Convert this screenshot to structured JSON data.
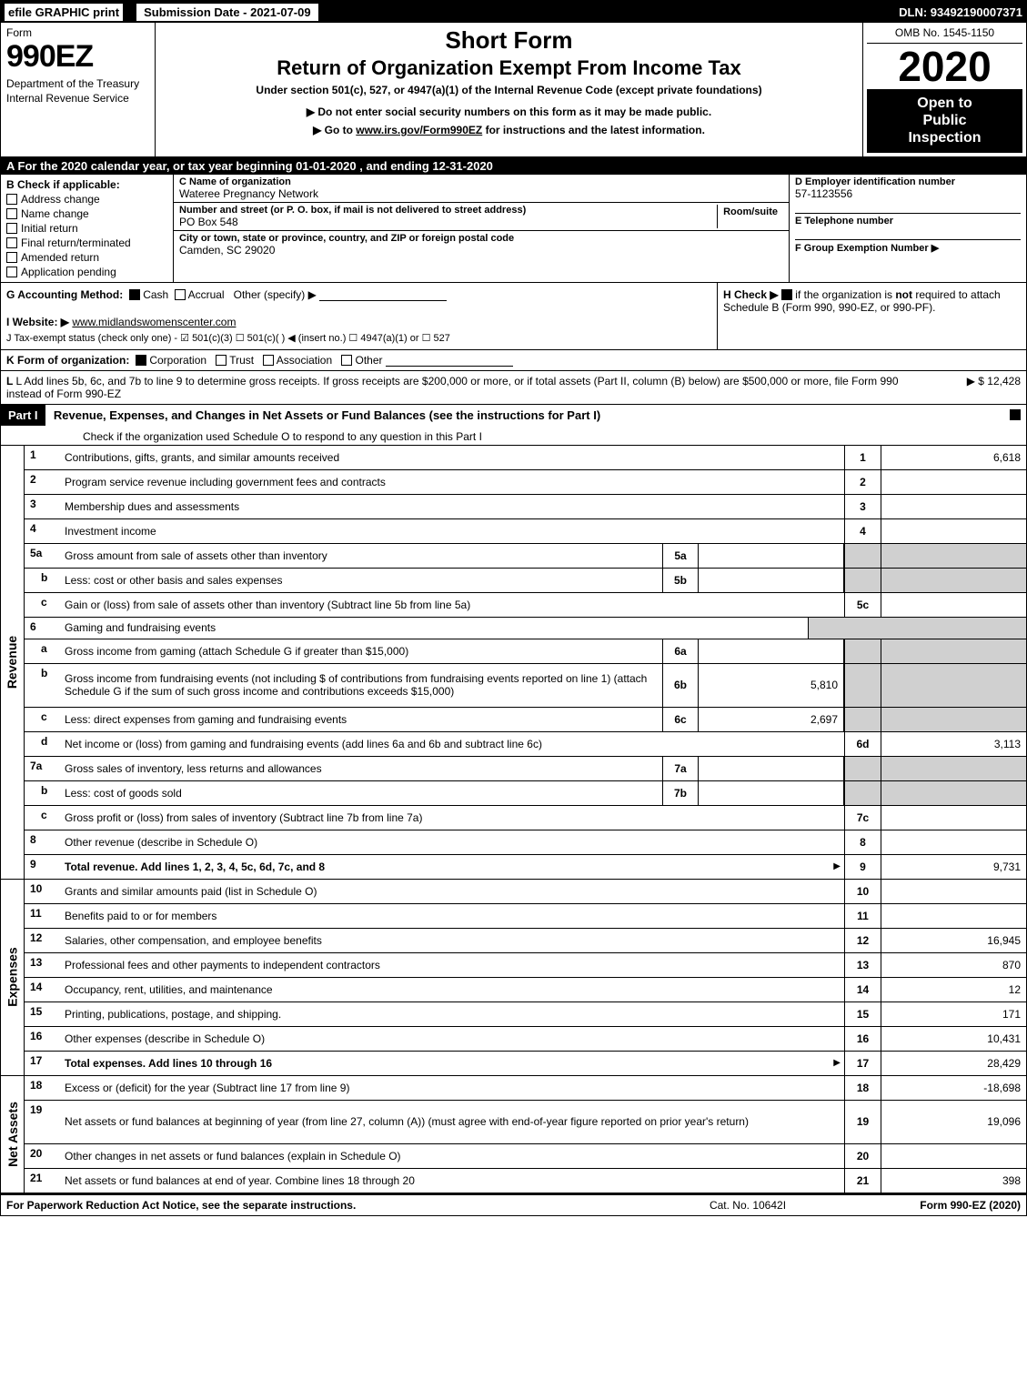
{
  "topbar": {
    "efile": "efile GRAPHIC print",
    "submission": "Submission Date - 2021-07-09",
    "dln": "DLN: 93492190007371"
  },
  "header": {
    "form_label": "Form",
    "form_number": "990EZ",
    "dept1": "Department of the Treasury",
    "dept2": "Internal Revenue Service",
    "short_form": "Short Form",
    "return_title": "Return of Organization Exempt From Income Tax",
    "subtitle": "Under section 501(c), 527, or 4947(a)(1) of the Internal Revenue Code (except private foundations)",
    "notice": "▶ Do not enter social security numbers on this form as it may be made public.",
    "goto": "▶ Go to www.irs.gov/Form990EZ for instructions and the latest information.",
    "goto_link": "www.irs.gov/Form990EZ",
    "omb": "OMB No. 1545-1150",
    "year": "2020",
    "open1": "Open to",
    "open2": "Public",
    "open3": "Inspection"
  },
  "cal_year": "A  For the 2020 calendar year, or tax year beginning 01-01-2020 , and ending 12-31-2020",
  "section_b": {
    "title": "B  Check if applicable:",
    "items": [
      "Address change",
      "Name change",
      "Initial return",
      "Final return/terminated",
      "Amended return",
      "Application pending"
    ]
  },
  "section_c": {
    "name_label": "C Name of organization",
    "name_value": "Wateree Pregnancy Network",
    "street_label": "Number and street (or P. O. box, if mail is not delivered to street address)",
    "room_label": "Room/suite",
    "street_value": "PO Box 548",
    "city_label": "City or town, state or province, country, and ZIP or foreign postal code",
    "city_value": "Camden, SC  29020"
  },
  "section_d": {
    "ein_label": "D Employer identification number",
    "ein_value": "57-1123556",
    "tel_label": "E Telephone number",
    "tel_value": "",
    "group_label": "F Group Exemption Number  ▶",
    "group_value": ""
  },
  "g_row": {
    "label": "G Accounting Method:",
    "cash": "Cash",
    "accrual": "Accrual",
    "other": "Other (specify) ▶"
  },
  "h_row": {
    "text1": "H  Check ▶",
    "text2": "if the organization is not required to attach Schedule B (Form 990, 990-EZ, or 990-PF)."
  },
  "i_row": {
    "label": "I Website: ▶",
    "value": "www.midlandswomenscenter.com"
  },
  "j_row": "J Tax-exempt status (check only one) -  ☑ 501(c)(3)  ☐ 501(c)(   ) ◀ (insert no.)  ☐ 4947(a)(1) or  ☐ 527",
  "k_row": {
    "label": "K Form of organization:",
    "corp": "Corporation",
    "trust": "Trust",
    "assoc": "Association",
    "other": "Other"
  },
  "l_row": {
    "text": "L Add lines 5b, 6c, and 7b to line 9 to determine gross receipts. If gross receipts are $200,000 or more, or if total assets (Part II, column (B) below) are $500,000 or more, file Form 990 instead of Form 990-EZ",
    "amount": "▶ $ 12,428"
  },
  "part1": {
    "label": "Part I",
    "title": "Revenue, Expenses, and Changes in Net Assets or Fund Balances (see the instructions for Part I)",
    "sub": "Check if the organization used Schedule O to respond to any question in this Part I"
  },
  "revenue": {
    "label": "Revenue",
    "rows": [
      {
        "n": "1",
        "d": "Contributions, gifts, grants, and similar amounts received",
        "ln": "1",
        "v": "6,618"
      },
      {
        "n": "2",
        "d": "Program service revenue including government fees and contracts",
        "ln": "2",
        "v": ""
      },
      {
        "n": "3",
        "d": "Membership dues and assessments",
        "ln": "3",
        "v": ""
      },
      {
        "n": "4",
        "d": "Investment income",
        "ln": "4",
        "v": ""
      },
      {
        "n": "5a",
        "d": "Gross amount from sale of assets other than inventory",
        "mini_ln": "5a",
        "mini_v": "",
        "shaded": true
      },
      {
        "n": "b",
        "sub": true,
        "d": "Less: cost or other basis and sales expenses",
        "mini_ln": "5b",
        "mini_v": "",
        "shaded": true
      },
      {
        "n": "c",
        "sub": true,
        "d": "Gain or (loss) from sale of assets other than inventory (Subtract line 5b from line 5a)",
        "ln": "5c",
        "v": ""
      },
      {
        "n": "6",
        "d": "Gaming and fundraising events",
        "shaded": true,
        "nodata": true
      },
      {
        "n": "a",
        "sub": true,
        "d": "Gross income from gaming (attach Schedule G if greater than $15,000)",
        "mini_ln": "6a",
        "mini_v": "",
        "shaded": true
      },
      {
        "n": "b",
        "sub": true,
        "d": "Gross income from fundraising events (not including $                of contributions from fundraising events reported on line 1) (attach Schedule G if the sum of such gross income and contributions exceeds $15,000)",
        "mini_ln": "6b",
        "mini_v": "5,810",
        "shaded": true,
        "tall": true
      },
      {
        "n": "c",
        "sub": true,
        "d": "Less: direct expenses from gaming and fundraising events",
        "mini_ln": "6c",
        "mini_v": "2,697",
        "shaded": true
      },
      {
        "n": "d",
        "sub": true,
        "d": "Net income or (loss) from gaming and fundraising events (add lines 6a and 6b and subtract line 6c)",
        "ln": "6d",
        "v": "3,113"
      },
      {
        "n": "7a",
        "d": "Gross sales of inventory, less returns and allowances",
        "mini_ln": "7a",
        "mini_v": "",
        "shaded": true
      },
      {
        "n": "b",
        "sub": true,
        "d": "Less: cost of goods sold",
        "mini_ln": "7b",
        "mini_v": "",
        "shaded": true
      },
      {
        "n": "c",
        "sub": true,
        "d": "Gross profit or (loss) from sales of inventory (Subtract line 7b from line 7a)",
        "ln": "7c",
        "v": ""
      },
      {
        "n": "8",
        "d": "Other revenue (describe in Schedule O)",
        "ln": "8",
        "v": ""
      },
      {
        "n": "9",
        "d": "Total revenue. Add lines 1, 2, 3, 4, 5c, 6d, 7c, and 8",
        "ln": "9",
        "v": "9,731",
        "bold": true,
        "arrow": true
      }
    ]
  },
  "expenses": {
    "label": "Expenses",
    "rows": [
      {
        "n": "10",
        "d": "Grants and similar amounts paid (list in Schedule O)",
        "ln": "10",
        "v": ""
      },
      {
        "n": "11",
        "d": "Benefits paid to or for members",
        "ln": "11",
        "v": ""
      },
      {
        "n": "12",
        "d": "Salaries, other compensation, and employee benefits",
        "ln": "12",
        "v": "16,945"
      },
      {
        "n": "13",
        "d": "Professional fees and other payments to independent contractors",
        "ln": "13",
        "v": "870"
      },
      {
        "n": "14",
        "d": "Occupancy, rent, utilities, and maintenance",
        "ln": "14",
        "v": "12"
      },
      {
        "n": "15",
        "d": "Printing, publications, postage, and shipping.",
        "ln": "15",
        "v": "171"
      },
      {
        "n": "16",
        "d": "Other expenses (describe in Schedule O)",
        "ln": "16",
        "v": "10,431"
      },
      {
        "n": "17",
        "d": "Total expenses. Add lines 10 through 16",
        "ln": "17",
        "v": "28,429",
        "bold": true,
        "arrow": true
      }
    ]
  },
  "netassets": {
    "label": "Net Assets",
    "rows": [
      {
        "n": "18",
        "d": "Excess or (deficit) for the year (Subtract line 17 from line 9)",
        "ln": "18",
        "v": "-18,698"
      },
      {
        "n": "19",
        "d": "Net assets or fund balances at beginning of year (from line 27, column (A)) (must agree with end-of-year figure reported on prior year's return)",
        "ln": "19",
        "v": "19,096",
        "tall": true
      },
      {
        "n": "20",
        "d": "Other changes in net assets or fund balances (explain in Schedule O)",
        "ln": "20",
        "v": ""
      },
      {
        "n": "21",
        "d": "Net assets or fund balances at end of year. Combine lines 18 through 20",
        "ln": "21",
        "v": "398"
      }
    ]
  },
  "footer": {
    "left": "For Paperwork Reduction Act Notice, see the separate instructions.",
    "center": "Cat. No. 10642I",
    "right": "Form 990-EZ (2020)"
  },
  "colors": {
    "black": "#000000",
    "white": "#ffffff",
    "shade": "#d0d0d0"
  }
}
